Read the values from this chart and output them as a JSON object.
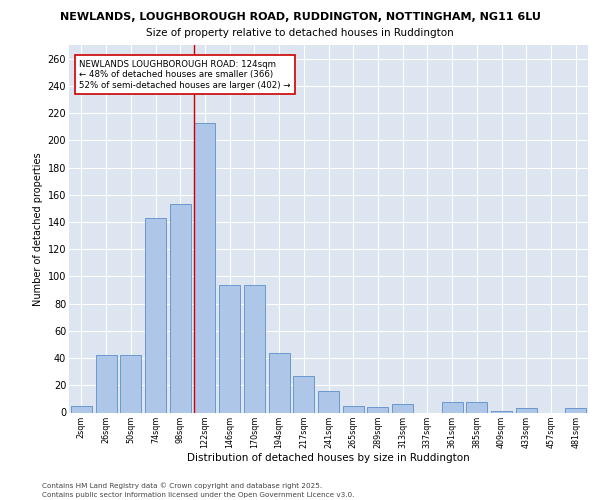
{
  "title_line1": "NEWLANDS, LOUGHBOROUGH ROAD, RUDDINGTON, NOTTINGHAM, NG11 6LU",
  "title_line2": "Size of property relative to detached houses in Ruddington",
  "xlabel": "Distribution of detached houses by size in Ruddington",
  "ylabel": "Number of detached properties",
  "categories": [
    "2sqm",
    "26sqm",
    "50sqm",
    "74sqm",
    "98sqm",
    "122sqm",
    "146sqm",
    "170sqm",
    "194sqm",
    "217sqm",
    "241sqm",
    "265sqm",
    "289sqm",
    "313sqm",
    "337sqm",
    "361sqm",
    "385sqm",
    "409sqm",
    "433sqm",
    "457sqm",
    "481sqm"
  ],
  "values": [
    5,
    42,
    42,
    143,
    153,
    213,
    94,
    94,
    44,
    27,
    16,
    5,
    4,
    6,
    0,
    8,
    8,
    1,
    3,
    0,
    3
  ],
  "bar_color": "#aec6e8",
  "bar_edge_color": "#5b8fc9",
  "vline_color": "#cc0000",
  "vline_index": 4.575,
  "annotation_text": "NEWLANDS LOUGHBOROUGH ROAD: 124sqm\n← 48% of detached houses are smaller (366)\n52% of semi-detached houses are larger (402) →",
  "annotation_box_color": "#ffffff",
  "annotation_box_edge": "#cc0000",
  "ylim": [
    0,
    270
  ],
  "yticks": [
    0,
    20,
    40,
    60,
    80,
    100,
    120,
    140,
    160,
    180,
    200,
    220,
    240,
    260
  ],
  "background_color": "#dde5f0",
  "grid_color": "#ffffff",
  "fig_background": "#ffffff",
  "footer_line1": "Contains HM Land Registry data © Crown copyright and database right 2025.",
  "footer_line2": "Contains public sector information licensed under the Open Government Licence v3.0."
}
